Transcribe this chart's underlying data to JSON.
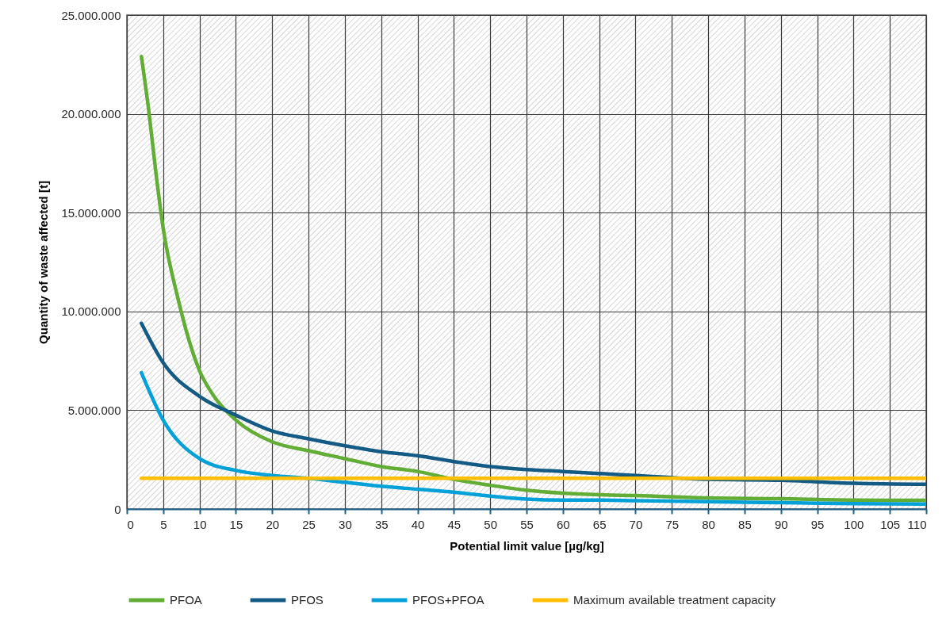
{
  "chart_data": {
    "type": "line",
    "xlabel": "Potential limit value [µg/kg]",
    "ylabel": "Quantity of waste affected [t]",
    "xlim": [
      0,
      110
    ],
    "xticks": [
      0,
      5,
      10,
      15,
      20,
      25,
      30,
      35,
      40,
      45,
      50,
      55,
      60,
      65,
      70,
      75,
      80,
      85,
      90,
      95,
      100,
      105,
      110
    ],
    "ylim": [
      0,
      25000000
    ],
    "yticks": [
      0,
      {
        "value": 5000000,
        "label": "5.000.000"
      },
      {
        "value": 10000000,
        "label": "10.000.000"
      },
      {
        "value": 15000000,
        "label": "15.000.000"
      },
      {
        "value": 20000000,
        "label": "20.000.000"
      },
      {
        "value": 25000000,
        "label": "25.000.000"
      }
    ],
    "grid": true,
    "legend": "bottom",
    "series": [
      {
        "name": "PFOA",
        "color": "#62ad36",
        "x": [
          2,
          3,
          4,
          5,
          7,
          10,
          12,
          15,
          20,
          25,
          30,
          35,
          40,
          45,
          50,
          55,
          60,
          65,
          70,
          80,
          90,
          100,
          110
        ],
        "values": [
          22900000,
          20200000,
          17000000,
          14200000,
          10700000,
          7000000,
          5700000,
          4500000,
          3400000,
          2950000,
          2550000,
          2150000,
          1900000,
          1500000,
          1200000,
          950000,
          800000,
          720000,
          680000,
          560000,
          520000,
          450000,
          440000
        ]
      },
      {
        "name": "PFOS",
        "color": "#135b84",
        "x": [
          2,
          5,
          10,
          15,
          20,
          25,
          30,
          35,
          40,
          45,
          50,
          55,
          60,
          65,
          70,
          80,
          90,
          100,
          110
        ],
        "values": [
          9400000,
          7400000,
          5700000,
          4750000,
          3950000,
          3550000,
          3200000,
          2900000,
          2700000,
          2400000,
          2150000,
          2000000,
          1900000,
          1800000,
          1700000,
          1500000,
          1450000,
          1300000,
          1250000
        ]
      },
      {
        "name": "PFOS+PFOA",
        "color": "#04a0d8",
        "x": [
          2,
          5,
          10,
          15,
          20,
          25,
          30,
          35,
          40,
          45,
          50,
          55,
          60,
          65,
          70,
          80,
          90,
          100,
          110
        ],
        "values": [
          6900000,
          4500000,
          2550000,
          1950000,
          1700000,
          1550000,
          1350000,
          1150000,
          1000000,
          850000,
          650000,
          500000,
          450000,
          450000,
          420000,
          370000,
          320000,
          270000,
          250000
        ]
      },
      {
        "name": "Maximum available treatment capacity",
        "color": "#ffbf00",
        "x": [
          2,
          110
        ],
        "values": [
          1550000,
          1550000
        ]
      }
    ]
  }
}
